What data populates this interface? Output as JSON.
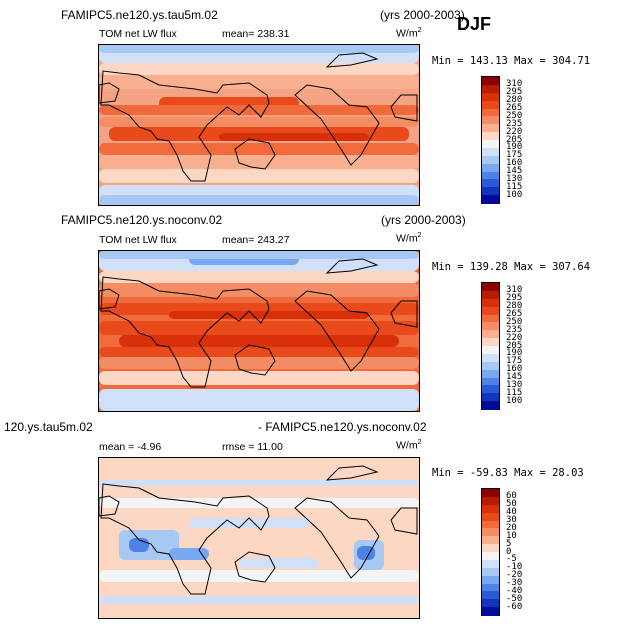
{
  "season": "DJF",
  "chart_data": [
    {
      "type": "heatmap",
      "case_title": "FAMIPC5.ne120.ys.tau5m.02",
      "years": "(yrs 2000-2003)",
      "variable": "TOM net LW flux",
      "stat": "mean= 238.31",
      "units_base": "W/m",
      "units_exp": "2",
      "minmax": "Min = 143.13 Max = 304.71",
      "levels": [
        "310",
        "295",
        "280",
        "265",
        "250",
        "235",
        "220",
        "205",
        "190",
        "175",
        "160",
        "145",
        "130",
        "115",
        "100"
      ],
      "colors": [
        "#8b0000",
        "#b81c00",
        "#d8300a",
        "#e84a1c",
        "#f06a3c",
        "#f48c64",
        "#f8b090",
        "#fcd8c4",
        "#f4f4f4",
        "#cfe0f8",
        "#a8c8f4",
        "#7aa8f0",
        "#4e82e4",
        "#2a5ad8",
        "#1434c0",
        "#000c96"
      ]
    },
    {
      "type": "heatmap",
      "case_title": "FAMIPC5.ne120.ys.noconv.02",
      "years": "(yrs 2000-2003)",
      "variable": "TOM net LW flux",
      "stat": "mean= 243.27",
      "units_base": "W/m",
      "units_exp": "2",
      "minmax": "Min = 139.28 Max = 307.64",
      "levels": [
        "310",
        "295",
        "280",
        "265",
        "250",
        "235",
        "220",
        "205",
        "190",
        "175",
        "160",
        "145",
        "130",
        "115",
        "100"
      ],
      "colors": [
        "#8b0000",
        "#b81c00",
        "#d8300a",
        "#e84a1c",
        "#f06a3c",
        "#f48c64",
        "#f8b090",
        "#fcd8c4",
        "#f4f4f4",
        "#cfe0f8",
        "#a8c8f4",
        "#7aa8f0",
        "#4e82e4",
        "#2a5ad8",
        "#1434c0",
        "#000c96"
      ]
    },
    {
      "type": "heatmap",
      "case_title": "120.ys.tau5m.02",
      "case_title_right": "- FAMIPC5.ne120.ys.noconv.02",
      "stat": "mean =  -4.96",
      "stat2": "rmse =  11.00",
      "units_base": "W/m",
      "units_exp": "2",
      "minmax": "Min = -59.83 Max =  28.03",
      "levels": [
        "60",
        "50",
        "40",
        "30",
        "20",
        "10",
        "5",
        "0",
        "-5",
        "-10",
        "-20",
        "-30",
        "-40",
        "-50",
        "-60"
      ],
      "colors": [
        "#8b0000",
        "#b81c00",
        "#d8300a",
        "#e84a1c",
        "#f06a3c",
        "#f48c64",
        "#f8b090",
        "#fcd8c4",
        "#f4f4f4",
        "#cfe0f8",
        "#a8c8f4",
        "#7aa8f0",
        "#4e82e4",
        "#2a5ad8",
        "#1434c0",
        "#000c96"
      ]
    }
  ]
}
